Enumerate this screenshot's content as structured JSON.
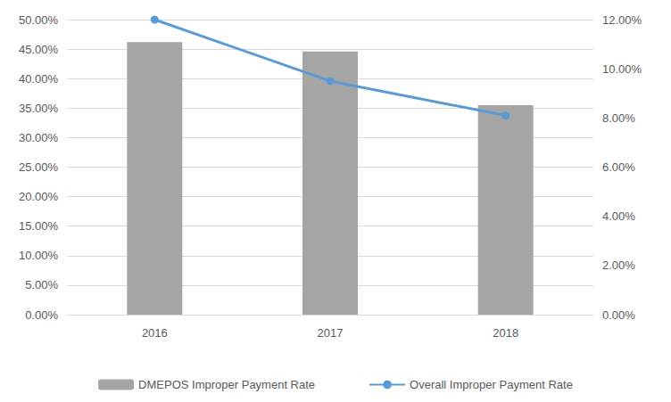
{
  "chart_data": {
    "type": "bar",
    "categories": [
      "2016",
      "2017",
      "2018"
    ],
    "series": [
      {
        "name": "DMEPOS Improper Payment Rate",
        "type": "bar",
        "color": "#a5a5a5",
        "values": [
          46.2,
          44.6,
          35.5
        ]
      },
      {
        "name": "Overall Improper Payment Rate",
        "type": "line",
        "color": "#5b9bd5",
        "marker": "circle",
        "axis": "y2",
        "values": [
          12.0,
          9.5,
          8.1
        ]
      }
    ],
    "ylim": [
      0,
      50
    ],
    "yticks": [
      {
        "value": 0,
        "label": "0.00%"
      },
      {
        "value": 5,
        "label": "5.00%"
      },
      {
        "value": 10,
        "label": "10.00%"
      },
      {
        "value": 15,
        "label": "15.00%"
      },
      {
        "value": 20,
        "label": "20.00%"
      },
      {
        "value": 25,
        "label": "25.00%"
      },
      {
        "value": 30,
        "label": "30.00%"
      },
      {
        "value": 35,
        "label": "35.00%"
      },
      {
        "value": 40,
        "label": "40.00%"
      },
      {
        "value": 45,
        "label": "45.00%"
      },
      {
        "value": 50,
        "label": "50.00%"
      }
    ],
    "y2lim": [
      0,
      12
    ],
    "y2ticks": [
      {
        "value": 0,
        "label": "0.00%"
      },
      {
        "value": 2,
        "label": "2.00%"
      },
      {
        "value": 4,
        "label": "4.00%"
      },
      {
        "value": 6,
        "label": "6.00%"
      },
      {
        "value": 8,
        "label": "8.00%"
      },
      {
        "value": 10,
        "label": "10.00%"
      },
      {
        "value": 12,
        "label": "12.00%"
      }
    ],
    "grid": true,
    "legend": "bottom"
  }
}
